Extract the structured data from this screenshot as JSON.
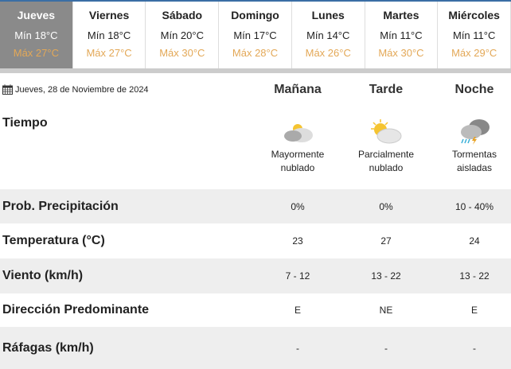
{
  "days": [
    {
      "name": "Jueves",
      "min": "Mín 18°C",
      "max": "Máx 27°C",
      "active": true
    },
    {
      "name": "Viernes",
      "min": "Mín 18°C",
      "max": "Máx 27°C"
    },
    {
      "name": "Sábado",
      "min": "Mín 20°C",
      "max": "Máx 30°C"
    },
    {
      "name": "Domingo",
      "min": "Mín 17°C",
      "max": "Máx 28°C"
    },
    {
      "name": "Lunes",
      "min": "Mín 14°C",
      "max": "Máx 26°C"
    },
    {
      "name": "Martes",
      "min": "Mín 11°C",
      "max": "Máx 30°C"
    },
    {
      "name": "Miércoles",
      "min": "Mín 11°C",
      "max": "Máx 29°C"
    }
  ],
  "date": "Jueves, 28 de Noviembre de 2024",
  "periods": [
    "Mañana",
    "Tarde",
    "Noche"
  ],
  "weather": {
    "label": "Tiempo",
    "items": [
      {
        "icon": "mostly-cloudy-icon",
        "line1": "Mayormente",
        "line2": "nublado"
      },
      {
        "icon": "partly-cloudy-icon",
        "line1": "Parcialmente",
        "line2": "nublado"
      },
      {
        "icon": "thunderstorm-icon",
        "line1": "Tormentas",
        "line2": "aisladas"
      }
    ]
  },
  "rows": [
    {
      "label": "Prob. Precipitación",
      "values": [
        "0%",
        "0%",
        "10 - 40%"
      ]
    },
    {
      "label": "Temperatura (°C)",
      "values": [
        "23",
        "27",
        "24"
      ]
    },
    {
      "label": "Viento (km/h)",
      "values": [
        "7 - 12",
        "13 - 22",
        "13 - 22"
      ]
    },
    {
      "label": "Dirección Predominante",
      "values": [
        "E",
        "NE",
        "E"
      ]
    },
    {
      "label": "Ráfagas (km/h)",
      "values": [
        "-",
        "-",
        "-"
      ]
    }
  ],
  "colors": {
    "max_temp": "#e3a857",
    "active_tab": "#8a8a8a",
    "row_alt": "#eeeeee"
  }
}
